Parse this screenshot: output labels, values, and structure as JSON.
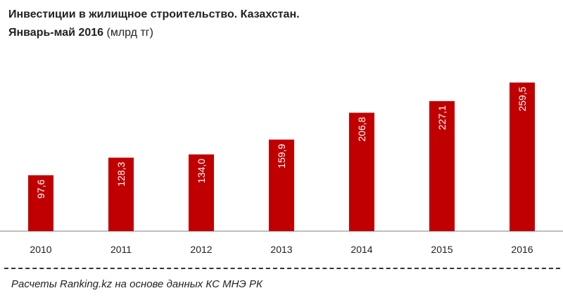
{
  "title": {
    "line1": "Инвестиции  в жилищное  строительство.  Казахстан.",
    "line2_bold": "Январь-май  2016",
    "line2_unit": "(млрд тг)"
  },
  "source": "Расчеты Ranking.kz на основе данных  КС МНЭ РК",
  "colors": {
    "bar": "#c00000",
    "axis": "#7f7f7f",
    "text": "#222222"
  },
  "chart_data": {
    "type": "bar",
    "title": "Инвестиции в жилищное строительство. Казахстан. Январь-май 2016 (млрд тг)",
    "categories": [
      "2010",
      "2011",
      "2012",
      "2013",
      "2014",
      "2015",
      "2016"
    ],
    "values": [
      97.6,
      128.3,
      134.0,
      159.9,
      206.8,
      227.1,
      259.5
    ],
    "value_labels": [
      "97,6",
      "128,3",
      "134,0",
      "159,9",
      "206,8",
      "227,1",
      "259,5"
    ],
    "ylim": [
      0,
      265
    ],
    "grid": false,
    "legend": "none"
  }
}
